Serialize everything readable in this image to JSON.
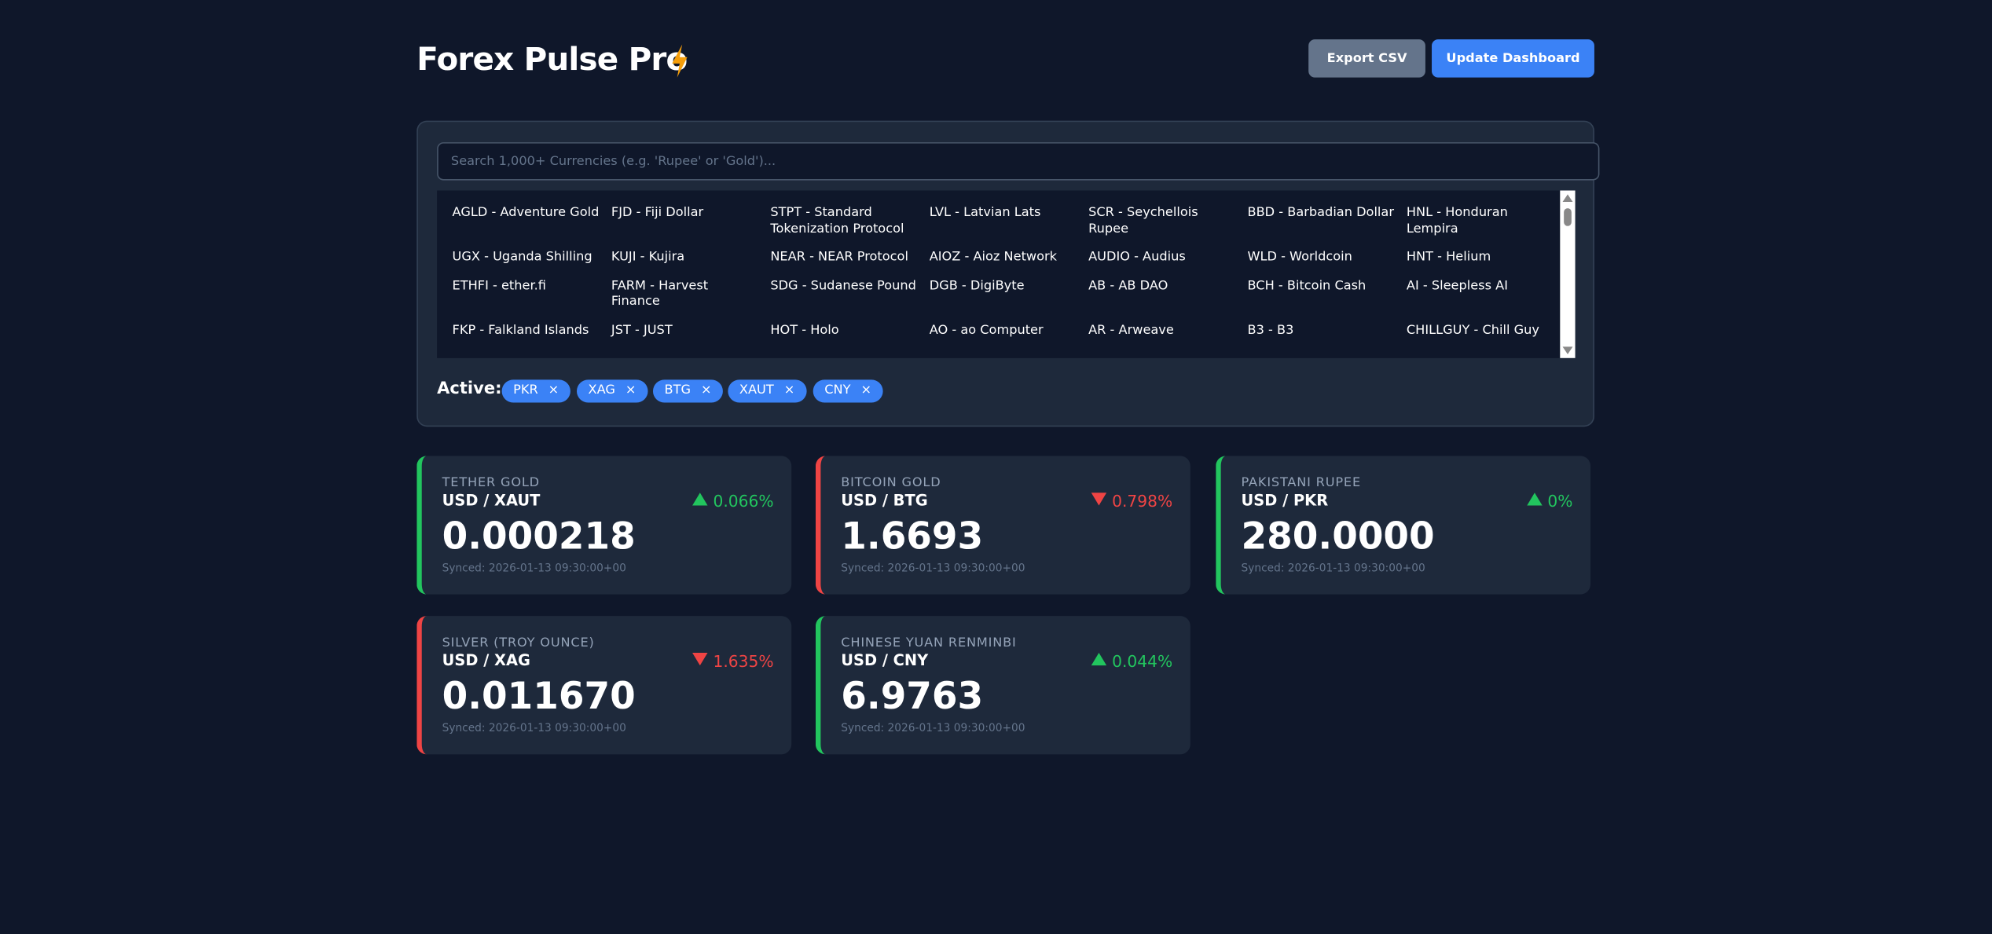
{
  "header": {
    "title": "Forex Pulse Pro",
    "buttons": [
      "Export CSV",
      "Update Dashboard"
    ]
  },
  "search": {
    "placeholder": "Search 1,000+ Currencies (e.g. 'Rupee' or 'Gold')..."
  },
  "currency_list": [
    "AGLD - Adventure Gold",
    "FJD - Fiji Dollar",
    "STPT - Standard Tokenization Protocol",
    "LVL - Latvian Lats",
    "SCR - Seychellois Rupee",
    "BBD - Barbadian Dollar",
    "HNL - Honduran Lempira",
    "UGX - Uganda Shilling",
    "KUJI - Kujira",
    "NEAR - NEAR Protocol",
    "AIOZ - Aioz Network",
    "AUDIO - Audius",
    "WLD - Worldcoin",
    "HNT - Helium",
    "ETHFI - ether.fi",
    "FARM - Harvest Finance",
    "SDG - Sudanese Pound",
    "DGB - DigiByte",
    "AB - AB DAO",
    "BCH - Bitcoin Cash",
    "AI - Sleepless AI",
    "FKP - Falkland Islands",
    "JST - JUST",
    "HOT - Holo",
    "AO - ao Computer",
    "AR - Arweave",
    "B3 - B3",
    "CHILLGUY - Chill Guy"
  ],
  "active": {
    "label": "Active:",
    "chips": [
      "PKR",
      "XAG",
      "BTG",
      "XAUT",
      "CNY"
    ]
  },
  "cards": [
    {
      "name": "TETHER GOLD",
      "pair": "USD / XAUT",
      "value": "0.000218",
      "change": "0.066%",
      "trend": "up",
      "synced": "Synced: 2026-01-13 09:30:00+00"
    },
    {
      "name": "BITCOIN GOLD",
      "pair": "USD / BTG",
      "value": "1.6693",
      "change": "0.798%",
      "trend": "down",
      "synced": "Synced: 2026-01-13 09:30:00+00"
    },
    {
      "name": "PAKISTANI RUPEE",
      "pair": "USD / PKR",
      "value": "280.0000",
      "change": "0%",
      "trend": "up",
      "synced": "Synced: 2026-01-13 09:30:00+00"
    },
    {
      "name": "SILVER (TROY OUNCE)",
      "pair": "USD / XAG",
      "value": "0.011670",
      "change": "1.635%",
      "trend": "down",
      "synced": "Synced: 2026-01-13 09:30:00+00"
    },
    {
      "name": "CHINESE YUAN RENMINBI",
      "pair": "USD / CNY",
      "value": "6.9763",
      "change": "0.044%",
      "trend": "up",
      "synced": "Synced: 2026-01-13 09:30:00+00"
    }
  ]
}
